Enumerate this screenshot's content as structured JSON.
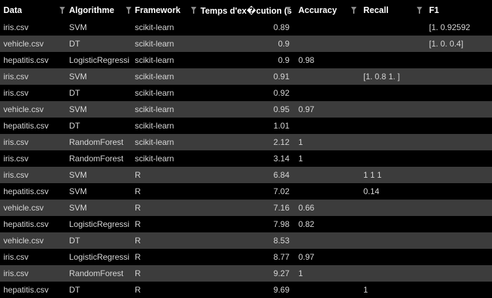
{
  "columns": [
    {
      "key": "data",
      "label": "Data"
    },
    {
      "key": "algo",
      "label": "Algorithme"
    },
    {
      "key": "fw",
      "label": "Framework"
    },
    {
      "key": "time",
      "label": "Temps d'ex�cution (s"
    },
    {
      "key": "acc",
      "label": "Accuracy"
    },
    {
      "key": "rec",
      "label": "Recall"
    },
    {
      "key": "f1",
      "label": "F1"
    }
  ],
  "rows": [
    {
      "data": "iris.csv",
      "algo": "SVM",
      "fw": "scikit-learn",
      "time": "0.89",
      "acc": "",
      "rec": "",
      "f1": "[1.         0.92592"
    },
    {
      "data": "vehicle.csv",
      "algo": "DT",
      "fw": "scikit-learn",
      "time": "0.9",
      "acc": "",
      "rec": "",
      "f1": "[1.  0.  0.4]"
    },
    {
      "data": "hepatitis.csv",
      "algo": "LogisticRegressi",
      "fw": "scikit-learn",
      "time": "0.9",
      "acc": "0.98",
      "rec": "",
      "f1": ""
    },
    {
      "data": "iris.csv",
      "algo": "SVM",
      "fw": "scikit-learn",
      "time": "0.91",
      "acc": "",
      "rec": "[1.  0.8 1. ]",
      "f1": ""
    },
    {
      "data": "iris.csv",
      "algo": "DT",
      "fw": "scikit-learn",
      "time": "0.92",
      "acc": "",
      "rec": "",
      "f1": ""
    },
    {
      "data": "vehicle.csv",
      "algo": "SVM",
      "fw": "scikit-learn",
      "time": "0.95",
      "acc": "0.97",
      "rec": "",
      "f1": ""
    },
    {
      "data": "hepatitis.csv",
      "algo": "DT",
      "fw": "scikit-learn",
      "time": "1.01",
      "acc": "",
      "rec": "",
      "f1": ""
    },
    {
      "data": "iris.csv",
      "algo": "RandomForest",
      "fw": "scikit-learn",
      "time": "2.12",
      "acc": "1",
      "rec": "",
      "f1": ""
    },
    {
      "data": "iris.csv",
      "algo": "RandomForest",
      "fw": "scikit-learn",
      "time": "3.14",
      "acc": "1",
      "rec": "",
      "f1": ""
    },
    {
      "data": "iris.csv",
      "algo": "SVM",
      "fw": "R",
      "time": "6.84",
      "acc": "",
      "rec": "1 1 1",
      "f1": ""
    },
    {
      "data": "hepatitis.csv",
      "algo": "SVM",
      "fw": "R",
      "time": "7.02",
      "acc": "",
      "rec": "0.14",
      "f1": ""
    },
    {
      "data": "vehicle.csv",
      "algo": "SVM",
      "fw": "R",
      "time": "7.16",
      "acc": "0.66",
      "rec": "",
      "f1": ""
    },
    {
      "data": "hepatitis.csv",
      "algo": "LogisticRegressi",
      "fw": "R",
      "time": "7.98",
      "acc": "0.82",
      "rec": "",
      "f1": ""
    },
    {
      "data": "vehicle.csv",
      "algo": "DT",
      "fw": "R",
      "time": "8.53",
      "acc": "",
      "rec": "",
      "f1": ""
    },
    {
      "data": "iris.csv",
      "algo": "LogisticRegressi",
      "fw": "R",
      "time": "8.77",
      "acc": "0.97",
      "rec": "",
      "f1": ""
    },
    {
      "data": "iris.csv",
      "algo": "RandomForest",
      "fw": "R",
      "time": "9.27",
      "acc": "1",
      "rec": "",
      "f1": ""
    },
    {
      "data": "hepatitis.csv",
      "algo": "DT",
      "fw": "R",
      "time": "9.69",
      "acc": "",
      "rec": "1",
      "f1": ""
    }
  ],
  "icons": {
    "filter": "filter-icon"
  },
  "colors": {
    "row_alt": "#3c3c3c",
    "background": "#000000",
    "text": "#d8d8d8",
    "header_text": "#ffffff"
  }
}
